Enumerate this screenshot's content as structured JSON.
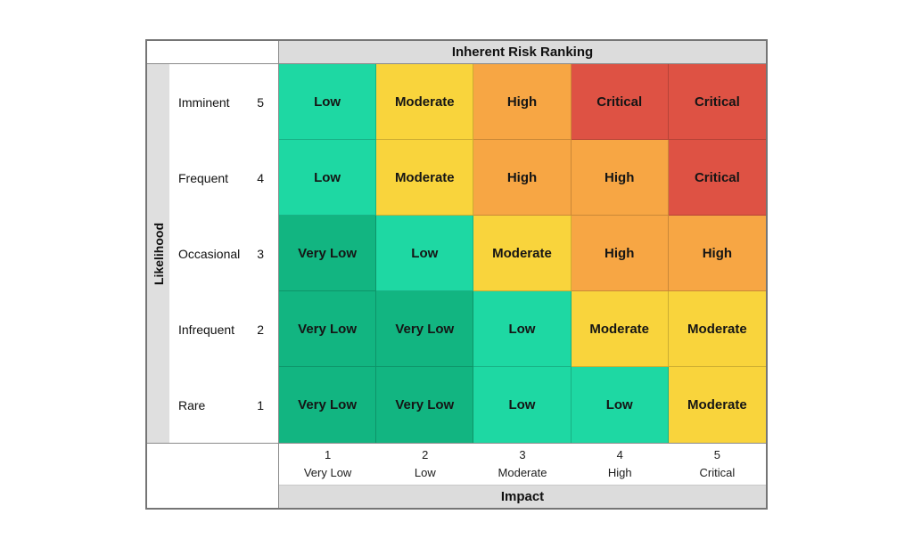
{
  "title": "Inherent Risk Ranking",
  "likelihood_title": "Likelihood",
  "impact_title": "Impact",
  "likelihood_rows": [
    {
      "label": "Imminent",
      "value": "5"
    },
    {
      "label": "Frequent",
      "value": "4"
    },
    {
      "label": "Occasional",
      "value": "3"
    },
    {
      "label": "Infrequent",
      "value": "2"
    },
    {
      "label": "Rare",
      "value": "1"
    }
  ],
  "impact_ticks": [
    {
      "value": "1",
      "label": "Very Low"
    },
    {
      "value": "2",
      "label": "Low"
    },
    {
      "value": "3",
      "label": "Moderate"
    },
    {
      "value": "4",
      "label": "High"
    },
    {
      "value": "5",
      "label": "Critical"
    }
  ],
  "matrix": {
    "rows": [
      {
        "cells": [
          "Low",
          "Moderate",
          "High",
          "Critical",
          "Critical"
        ]
      },
      {
        "cells": [
          "Low",
          "Moderate",
          "High",
          "High",
          "Critical"
        ]
      },
      {
        "cells": [
          "Very Low",
          "Low",
          "Moderate",
          "High",
          "High"
        ]
      },
      {
        "cells": [
          "Very Low",
          "Very Low",
          "Low",
          "Moderate",
          "Moderate"
        ]
      },
      {
        "cells": [
          "Very Low",
          "Very Low",
          "Low",
          "Low",
          "Moderate"
        ]
      }
    ]
  },
  "colors": {
    "very_low": "#12B581",
    "low": "#1ED8A3",
    "moderate": "#F9D43C",
    "high": "#F7A644",
    "critical": "#DE5244",
    "header_gray": "#DCDCDC",
    "axis_strip_gray": "#DFDFDF"
  },
  "chart_data": {
    "type": "heatmap",
    "title": "Inherent Risk Ranking",
    "xlabel": "Impact",
    "ylabel": "Likelihood",
    "x_categories": [
      "1 Very Low",
      "2 Low",
      "3 Moderate",
      "4 High",
      "5 Critical"
    ],
    "y_categories": [
      "5 Imminent",
      "4 Frequent",
      "3 Occasional",
      "2 Infrequent",
      "1 Rare"
    ],
    "values": [
      [
        "Low",
        "Moderate",
        "High",
        "Critical",
        "Critical"
      ],
      [
        "Low",
        "Moderate",
        "High",
        "High",
        "Critical"
      ],
      [
        "Very Low",
        "Low",
        "Moderate",
        "High",
        "High"
      ],
      [
        "Very Low",
        "Very Low",
        "Low",
        "Moderate",
        "Moderate"
      ],
      [
        "Very Low",
        "Very Low",
        "Low",
        "Low",
        "Moderate"
      ]
    ],
    "legend": [
      {
        "label": "Very Low",
        "color": "#12B581"
      },
      {
        "label": "Low",
        "color": "#1ED8A3"
      },
      {
        "label": "Moderate",
        "color": "#F9D43C"
      },
      {
        "label": "High",
        "color": "#F7A644"
      },
      {
        "label": "Critical",
        "color": "#DE5244"
      }
    ],
    "grid": true,
    "legend_position": "none"
  }
}
